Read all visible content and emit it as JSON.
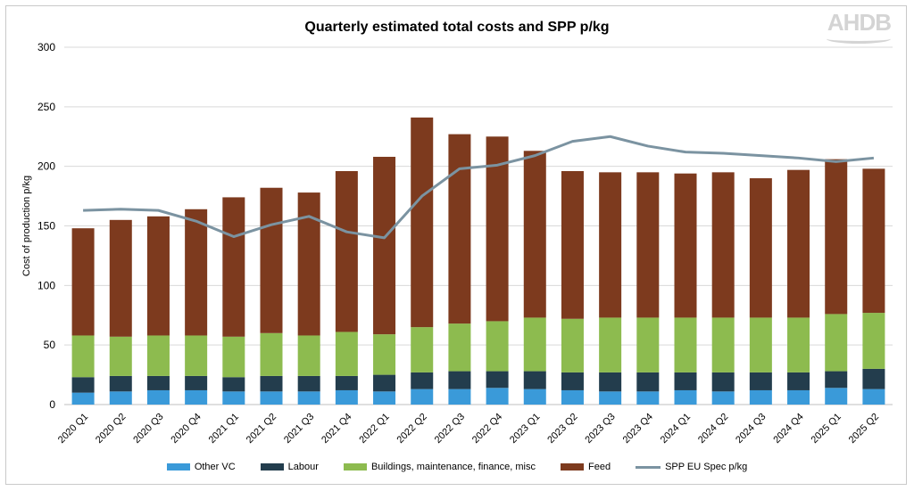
{
  "chart_data": {
    "type": "bar",
    "stacked": true,
    "title": "Quarterly estimated total costs and SPP p/kg",
    "ylabel": "Cost of production p/kg",
    "xlabel": "",
    "ylim": [
      0,
      300
    ],
    "yticks": [
      0,
      50,
      100,
      150,
      200,
      250,
      300
    ],
    "grid": true,
    "legend_position": "bottom",
    "categories": [
      "2020 Q1",
      "2020 Q2",
      "2020 Q3",
      "2020 Q4",
      "2021 Q1",
      "2021 Q2",
      "2021 Q3",
      "2021 Q4",
      "2022 Q1",
      "2022 Q2",
      "2022 Q3",
      "2022 Q4",
      "2023 Q1",
      "2023 Q2",
      "2023 Q3",
      "2023 Q4",
      "2024 Q1",
      "2024 Q2",
      "2024 Q3",
      "2024 Q4",
      "2025 Q1",
      "2025 Q2"
    ],
    "series": [
      {
        "name": "Other VC",
        "color": "#3a9ad9",
        "values": [
          10,
          11,
          12,
          12,
          11,
          11,
          11,
          12,
          11,
          13,
          13,
          14,
          13,
          12,
          11,
          11,
          12,
          11,
          12,
          12,
          14,
          13
        ]
      },
      {
        "name": "Labour",
        "color": "#233d4d",
        "values": [
          13,
          13,
          12,
          12,
          12,
          13,
          13,
          12,
          14,
          14,
          15,
          14,
          15,
          15,
          16,
          16,
          15,
          16,
          15,
          15,
          14,
          17
        ]
      },
      {
        "name": "Buildings, maintenance, finance, misc",
        "color": "#8dbb4f",
        "values": [
          35,
          33,
          34,
          34,
          34,
          36,
          34,
          37,
          34,
          38,
          40,
          42,
          45,
          45,
          46,
          46,
          46,
          46,
          46,
          46,
          48,
          47
        ]
      },
      {
        "name": "Feed",
        "color": "#7d3a1e",
        "values": [
          90,
          98,
          100,
          106,
          117,
          122,
          120,
          135,
          149,
          176,
          159,
          155,
          140,
          124,
          122,
          122,
          121,
          122,
          117,
          124,
          130,
          121
        ]
      }
    ],
    "line_series": {
      "name": "SPP EU Spec p/kg",
      "color": "#7b93a1",
      "values": [
        163,
        164,
        163,
        154,
        141,
        151,
        158,
        145,
        140,
        175,
        198,
        201,
        209,
        221,
        225,
        217,
        212,
        211,
        209,
        207,
        204,
        207
      ]
    },
    "watermark": "AHDB"
  }
}
